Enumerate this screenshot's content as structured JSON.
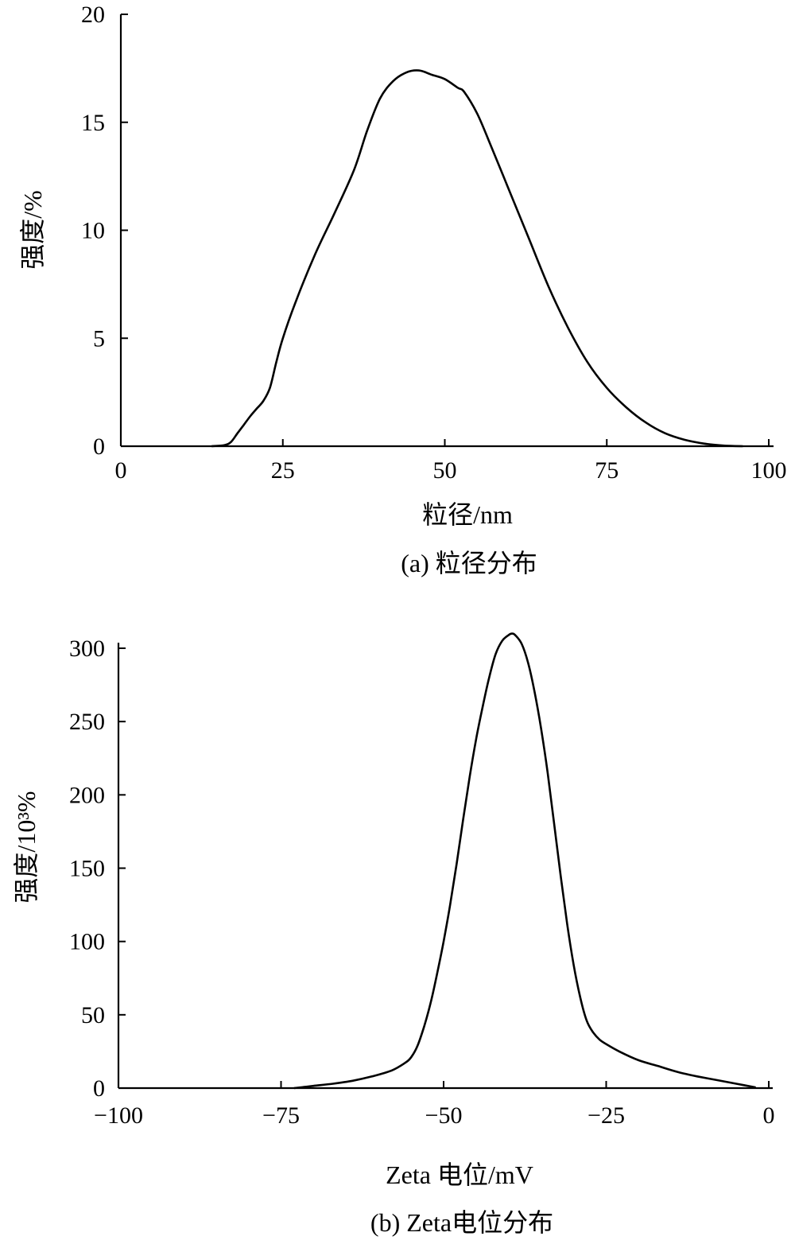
{
  "chart_data": [
    {
      "id": "a",
      "type": "line",
      "caption": "(a) 粒径分布",
      "xlabel": "粒径/nm",
      "ylabel": "强度/%",
      "xlim": [
        0,
        100
      ],
      "ylim": [
        0,
        20
      ],
      "xticks": [
        0,
        25,
        50,
        75,
        100
      ],
      "xtick_labels": [
        "0",
        "25",
        "50",
        "75",
        "100"
      ],
      "yticks": [
        0,
        5,
        10,
        15,
        20
      ],
      "ytick_labels": [
        "0",
        "5",
        "10",
        "15",
        "20"
      ],
      "grid": false,
      "series": [
        {
          "x": [
            14,
            16,
            17,
            18,
            19,
            20,
            21,
            22,
            23,
            24,
            25,
            27,
            30,
            33,
            36,
            38,
            40,
            42,
            44,
            46,
            48,
            50,
            52,
            53,
            55,
            57,
            60,
            63,
            66,
            69,
            72,
            75,
            78,
            81,
            84,
            87,
            90,
            93,
            96
          ],
          "y": [
            0,
            0.05,
            0.2,
            0.6,
            1.0,
            1.4,
            1.75,
            2.1,
            2.7,
            3.9,
            5.0,
            6.7,
            8.9,
            10.8,
            12.8,
            14.6,
            16.1,
            16.9,
            17.3,
            17.4,
            17.2,
            17.0,
            16.6,
            16.4,
            15.4,
            14.0,
            11.8,
            9.6,
            7.4,
            5.5,
            3.9,
            2.7,
            1.8,
            1.1,
            0.6,
            0.3,
            0.12,
            0.03,
            0
          ]
        }
      ]
    },
    {
      "id": "b",
      "type": "line",
      "caption": "(b) Zeta电位分布",
      "xlabel": "Zeta 电位/mV",
      "ylabel": "强度/10³%",
      "xlim": [
        -100,
        0
      ],
      "ylim": [
        0,
        300
      ],
      "xticks": [
        -100,
        -75,
        -50,
        -25,
        0
      ],
      "xtick_labels": [
        "−100",
        "−75",
        "−50",
        "−25",
        "0"
      ],
      "yticks": [
        0,
        50,
        100,
        150,
        200,
        250,
        300
      ],
      "ytick_labels": [
        "0",
        "50",
        "100",
        "150",
        "200",
        "250",
        "300"
      ],
      "grid": false,
      "series": [
        {
          "x": [
            -73,
            -70,
            -67,
            -64,
            -61,
            -58,
            -56,
            -55,
            -54,
            -53,
            -52,
            -51,
            -50,
            -49,
            -48,
            -47,
            -46,
            -45,
            -44,
            -43,
            -42,
            -41,
            -40,
            -39.5,
            -39,
            -38,
            -37,
            -36,
            -35,
            -34,
            -33,
            -32,
            -31,
            -30,
            -29,
            -28,
            -27,
            -26,
            -25,
            -23,
            -20,
            -17,
            -14,
            -11,
            -8,
            -5,
            -2
          ],
          "y": [
            0,
            1.5,
            3,
            5,
            8,
            12,
            17,
            21,
            29,
            42,
            58,
            78,
            100,
            125,
            153,
            183,
            212,
            238,
            260,
            280,
            296,
            305,
            309,
            310,
            309,
            303,
            290,
            270,
            245,
            215,
            180,
            145,
            112,
            84,
            62,
            46,
            38,
            33,
            30,
            25,
            19,
            15,
            11,
            8,
            5.5,
            3,
            0.5
          ]
        }
      ]
    }
  ]
}
